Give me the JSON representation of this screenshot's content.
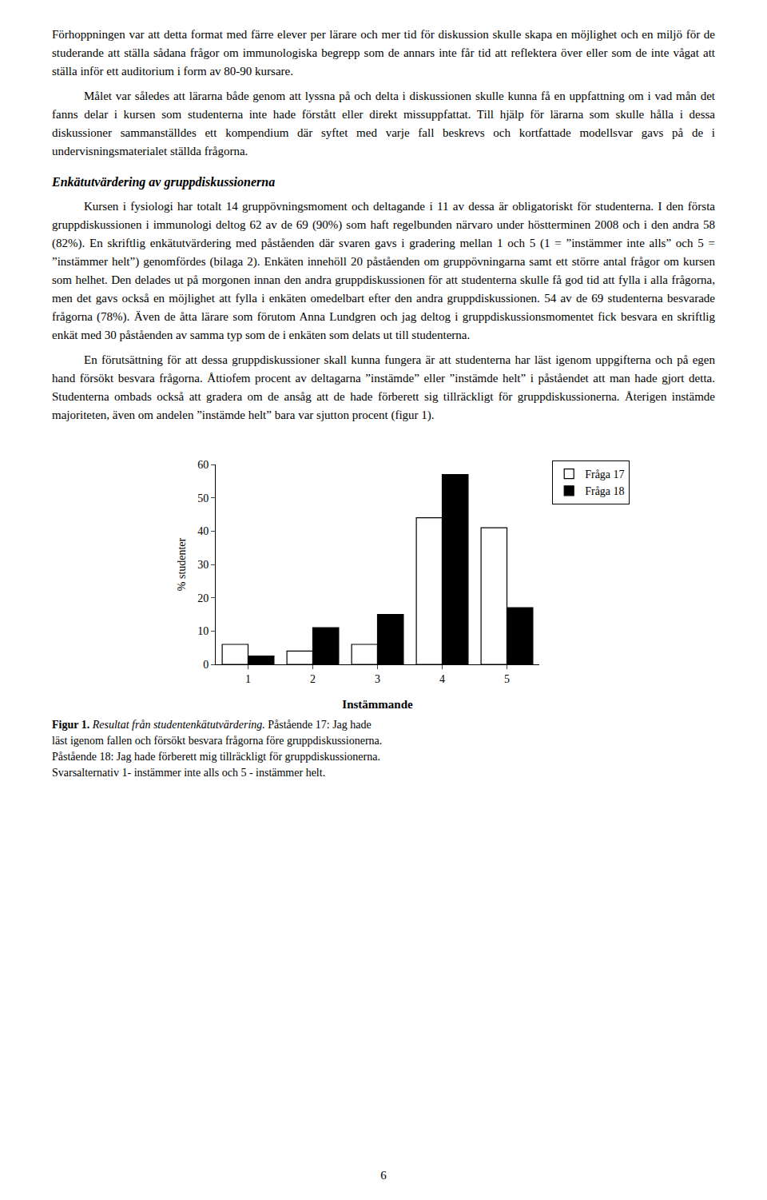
{
  "chart_data": {
    "type": "bar",
    "categories": [
      1,
      2,
      3,
      4,
      5
    ],
    "series": [
      {
        "name": "Fråga 17",
        "color": "#ffffff",
        "values": [
          6.0,
          4.0,
          6.0,
          44.0,
          41.0
        ]
      },
      {
        "name": "Fråga 18",
        "color": "#000000",
        "values": [
          2.5,
          11.0,
          15.0,
          57.0,
          17.0
        ]
      }
    ],
    "xlabel": "Instämmande",
    "ylabel": "% studenter",
    "ylim": [
      0,
      60
    ],
    "yticks": [
      0,
      10,
      20,
      30,
      40,
      50,
      60
    ],
    "grid": false,
    "legend": "right",
    "annotations": [
      "Förhoppningen var att detta format med färre elever per lärare och mer tid för diskussion skulle skapa en möjlighet och en miljö för de studerande att ställa sådana frågor om immunologiska begrepp som de annars inte får tid att reflektera över eller som de inte vågat att ställa inför ett auditorium i form av 80-90 kursare.",
      "Målet var således att lärarna både genom att lyssna på och delta i diskussionen skulle kunna få en uppfattning om i vad mån det fanns delar i kursen som studenterna inte hade förstått eller direkt missuppfattat. Till hjälp för lärarna som skulle hålla i dessa diskussioner sammanställdes ett kompendium där syftet med varje fall beskrevs och kortfattade modellsvar gavs på de i undervisningsmaterialet ställda frågorna.",
      "Enkätutvärdering av gruppdiskussionerna",
      "Kursen i fysiologi har totalt 14 gruppövningsmoment och deltagande i 11 av dessa är obligatoriskt för studenterna. I den första gruppdiskussionen i immunologi deltog 62 av de 69 (90%) som haft regelbunden närvaro under höstterminen 2008 och i den andra 58 (82%). En skriftlig enkätutvärdering med påståenden där svaren gavs i gradering mellan 1 och 5 (1 = ”instämmer inte alls” och 5 = ”instämmer helt”) genomfördes (bilaga 2). Enkäten innehöll 20 påståenden om gruppövningarna samt ett större antal frågor om kursen som helhet. Den delades ut på morgonen innan den andra gruppdiskussionen för att studenterna skulle få god tid att fylla i alla frågorna, men det gavs också en möjlighet att fylla i enkäten omedelbart efter den andra gruppdiskussionen. 54 av de 69 studenterna besvarade frågorna (78%). Även de åtta lärare som förutom Anna Lundgren och jag deltog i gruppdiskussionsmomentet fick besvara en skriftlig enkät med 30 påståenden av samma typ som de i enkäten som delats ut till studenterna.",
      "En förutsättning för att dessa gruppdiskussioner skall kunna fungera är att studenterna har läst igenom uppgifterna och på egen hand försökt besvara frågorna. Åttiofem procent av deltagarna ”instämde” eller ”instämde helt” i påståendet att man hade gjort detta. Studenterna ombads också att gradera om de ansåg att de hade förberett sig tillräckligt för gruppdiskussionerna. Återigen instämde majoriteten, även om andelen ”instämde helt” bara var sjutton procent (figur 1).",
      "Figur 1.",
      " Resultat från studentenkätutvärdering.",
      " Påstående 17: Jag hade",
      "läst igenom fallen och försökt besvara frågorna före gruppdiskussionerna.",
      "Påstående 18: Jag hade förberett mig tillräckligt för gruppdiskussionerna.",
      "Svarsalternativ 1- instämmer inte alls och 5 - instämmer helt.",
      "6"
    ]
  }
}
